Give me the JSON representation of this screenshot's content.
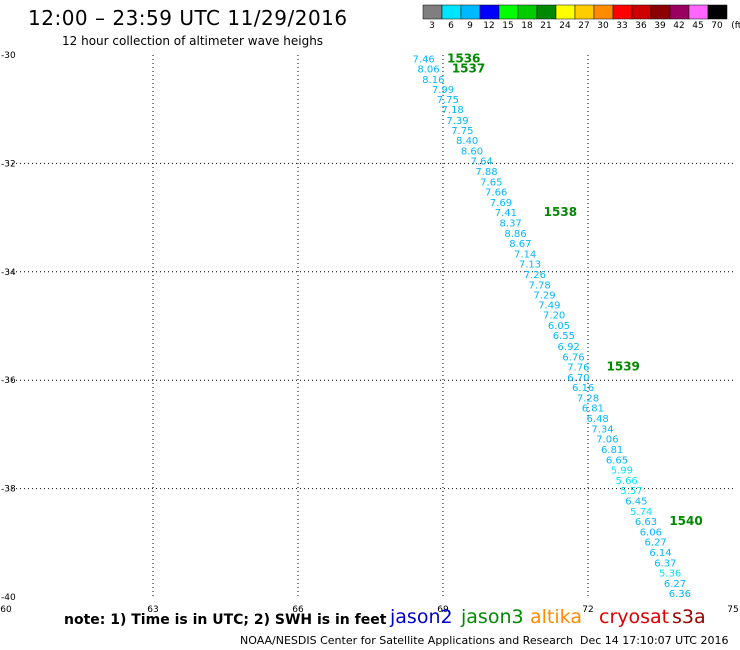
{
  "header": {
    "title": "12:00 – 23:59 UTC 11/29/2016",
    "subtitle": "12 hour collection of altimeter wave heighs"
  },
  "legend": {
    "colorbar": [
      {
        "label": "3",
        "color": "#7f7f7f"
      },
      {
        "label": "6",
        "color": "#00e5ff"
      },
      {
        "label": "9",
        "color": "#00b8ff"
      },
      {
        "label": "12",
        "color": "#0000ff"
      },
      {
        "label": "15",
        "color": "#00ff00"
      },
      {
        "label": "18",
        "color": "#00cc00"
      },
      {
        "label": "21",
        "color": "#008800"
      },
      {
        "label": "24",
        "color": "#ffff00"
      },
      {
        "label": "27",
        "color": "#ffcc00"
      },
      {
        "label": "30",
        "color": "#ff8c00"
      },
      {
        "label": "33",
        "color": "#ff0000"
      },
      {
        "label": "36",
        "color": "#cc0000"
      },
      {
        "label": "39",
        "color": "#8b0000"
      },
      {
        "label": "42",
        "color": "#9a0060"
      },
      {
        "label": "45",
        "color": "#ff66ff"
      },
      {
        "label": "70",
        "color": "#000000"
      }
    ],
    "unit": "(ft)"
  },
  "note": "note: 1) Time is in UTC; 2) SWH is in feet",
  "satellites": [
    {
      "name": "jason2",
      "color": "#0000cc"
    },
    {
      "name": "jason3",
      "color": "#008800"
    },
    {
      "name": "altika",
      "color": "#ff8c00"
    },
    {
      "name": "cryosat",
      "color": "#dd0000"
    },
    {
      "name": "s3a",
      "color": "#990000"
    }
  ],
  "footer": {
    "credit": "NOAA/NESDIS Center for Satellite Applications and Research",
    "timestamp": "Dec 14 17:10:07 UTC 2016"
  },
  "chart_data": {
    "type": "scatter",
    "title": "12:00 – 23:59 UTC 11/29/2016",
    "xlim": [
      60,
      75
    ],
    "ylim": [
      -40,
      -30
    ],
    "xticks": [
      60,
      63,
      66,
      69,
      72,
      75
    ],
    "yticks": [
      -30,
      -32,
      -34,
      -36,
      -38,
      -40
    ],
    "x_tick_labels": [
      "60",
      "63",
      "66",
      "69",
      "72",
      "75"
    ],
    "y_tick_labels": [
      "-30",
      "-32",
      "-34",
      "-36",
      "-38",
      "-40"
    ],
    "grid": true,
    "points": [
      {
        "x": 68.6,
        "y": -30.06,
        "v": "7.46",
        "color": "#00b8ff"
      },
      {
        "x": 68.7,
        "y": -30.25,
        "v": "8.06",
        "color": "#00b8ff"
      },
      {
        "x": 68.8,
        "y": -30.44,
        "v": "8.16",
        "color": "#00b8ff"
      },
      {
        "x": 69.0,
        "y": -30.63,
        "v": "7.99",
        "color": "#00b8ff"
      },
      {
        "x": 69.1,
        "y": -30.81,
        "v": "7.75",
        "color": "#00b8ff"
      },
      {
        "x": 69.2,
        "y": -31.0,
        "v": "7.18",
        "color": "#00b8ff"
      },
      {
        "x": 69.3,
        "y": -31.2,
        "v": "7.39",
        "color": "#00b8ff"
      },
      {
        "x": 69.4,
        "y": -31.38,
        "v": "7.75",
        "color": "#00b8ff"
      },
      {
        "x": 69.5,
        "y": -31.57,
        "v": "8.40",
        "color": "#00b8ff"
      },
      {
        "x": 69.6,
        "y": -31.76,
        "v": "8.60",
        "color": "#00b8ff"
      },
      {
        "x": 69.8,
        "y": -31.95,
        "v": "7.64",
        "color": "#00b8ff"
      },
      {
        "x": 69.9,
        "y": -32.14,
        "v": "7.88",
        "color": "#00b8ff"
      },
      {
        "x": 70.0,
        "y": -32.33,
        "v": "7.65",
        "color": "#00b8ff"
      },
      {
        "x": 70.1,
        "y": -32.52,
        "v": "7.66",
        "color": "#00b8ff"
      },
      {
        "x": 70.2,
        "y": -32.71,
        "v": "7.69",
        "color": "#00b8ff"
      },
      {
        "x": 70.3,
        "y": -32.9,
        "v": "7.41",
        "color": "#00b8ff"
      },
      {
        "x": 70.4,
        "y": -33.09,
        "v": "8.37",
        "color": "#00b8ff"
      },
      {
        "x": 70.5,
        "y": -33.28,
        "v": "8.86",
        "color": "#00b8ff"
      },
      {
        "x": 70.6,
        "y": -33.47,
        "v": "8.67",
        "color": "#00b8ff"
      },
      {
        "x": 70.7,
        "y": -33.66,
        "v": "7.14",
        "color": "#00b8ff"
      },
      {
        "x": 70.8,
        "y": -33.85,
        "v": "7.13",
        "color": "#00b8ff"
      },
      {
        "x": 70.9,
        "y": -34.04,
        "v": "7.26",
        "color": "#00b8ff"
      },
      {
        "x": 71.0,
        "y": -34.23,
        "v": "7.78",
        "color": "#00b8ff"
      },
      {
        "x": 71.1,
        "y": -34.42,
        "v": "7.29",
        "color": "#00b8ff"
      },
      {
        "x": 71.2,
        "y": -34.6,
        "v": "7.49",
        "color": "#00b8ff"
      },
      {
        "x": 71.3,
        "y": -34.79,
        "v": "7.20",
        "color": "#00b8ff"
      },
      {
        "x": 71.4,
        "y": -34.98,
        "v": "6.05",
        "color": "#00b8ff"
      },
      {
        "x": 71.5,
        "y": -35.17,
        "v": "6.55",
        "color": "#00b8ff"
      },
      {
        "x": 71.6,
        "y": -35.37,
        "v": "6.92",
        "color": "#00b8ff"
      },
      {
        "x": 71.7,
        "y": -35.56,
        "v": "6.76",
        "color": "#00b8ff"
      },
      {
        "x": 71.8,
        "y": -35.75,
        "v": "7.76",
        "color": "#00b8ff"
      },
      {
        "x": 71.8,
        "y": -35.94,
        "v": "6.70",
        "color": "#00b8ff"
      },
      {
        "x": 71.9,
        "y": -36.13,
        "v": "6.16",
        "color": "#00b8ff"
      },
      {
        "x": 72.0,
        "y": -36.32,
        "v": "7.28",
        "color": "#00b8ff"
      },
      {
        "x": 72.1,
        "y": -36.5,
        "v": "6.81",
        "color": "#00b8ff"
      },
      {
        "x": 72.2,
        "y": -36.7,
        "v": "6.48",
        "color": "#00b8ff"
      },
      {
        "x": 72.3,
        "y": -36.89,
        "v": "7.34",
        "color": "#00b8ff"
      },
      {
        "x": 72.4,
        "y": -37.08,
        "v": "7.06",
        "color": "#00b8ff"
      },
      {
        "x": 72.5,
        "y": -37.27,
        "v": "6.81",
        "color": "#00b8ff"
      },
      {
        "x": 72.6,
        "y": -37.46,
        "v": "6.65",
        "color": "#00b8ff"
      },
      {
        "x": 72.7,
        "y": -37.65,
        "v": "5.99",
        "color": "#00e5ff"
      },
      {
        "x": 72.8,
        "y": -37.84,
        "v": "5.66",
        "color": "#00e5ff"
      },
      {
        "x": 72.9,
        "y": -38.03,
        "v": "5.57",
        "color": "#00e5ff"
      },
      {
        "x": 73.0,
        "y": -38.22,
        "v": "6.45",
        "color": "#00b8ff"
      },
      {
        "x": 73.1,
        "y": -38.41,
        "v": "5.74",
        "color": "#00e5ff"
      },
      {
        "x": 73.2,
        "y": -38.6,
        "v": "6.63",
        "color": "#00b8ff"
      },
      {
        "x": 73.3,
        "y": -38.79,
        "v": "6.06",
        "color": "#00b8ff"
      },
      {
        "x": 73.4,
        "y": -38.98,
        "v": "6.27",
        "color": "#00b8ff"
      },
      {
        "x": 73.5,
        "y": -39.17,
        "v": "6.14",
        "color": "#00b8ff"
      },
      {
        "x": 73.6,
        "y": -39.36,
        "v": "6.37",
        "color": "#00b8ff"
      },
      {
        "x": 73.7,
        "y": -39.55,
        "v": "5.36",
        "color": "#00e5ff"
      },
      {
        "x": 73.8,
        "y": -39.74,
        "v": "6.27",
        "color": "#00b8ff"
      },
      {
        "x": 73.9,
        "y": -39.93,
        "v": "6.36",
        "color": "#00b8ff"
      }
    ],
    "time_labels": [
      {
        "x": 69.0,
        "y": -30.06,
        "label": "1536"
      },
      {
        "x": 69.1,
        "y": -30.25,
        "label": "1537"
      },
      {
        "x": 71.0,
        "y": -32.9,
        "label": "1538"
      },
      {
        "x": 72.3,
        "y": -35.75,
        "label": "1539"
      },
      {
        "x": 73.6,
        "y": -38.6,
        "label": "1540"
      }
    ]
  }
}
